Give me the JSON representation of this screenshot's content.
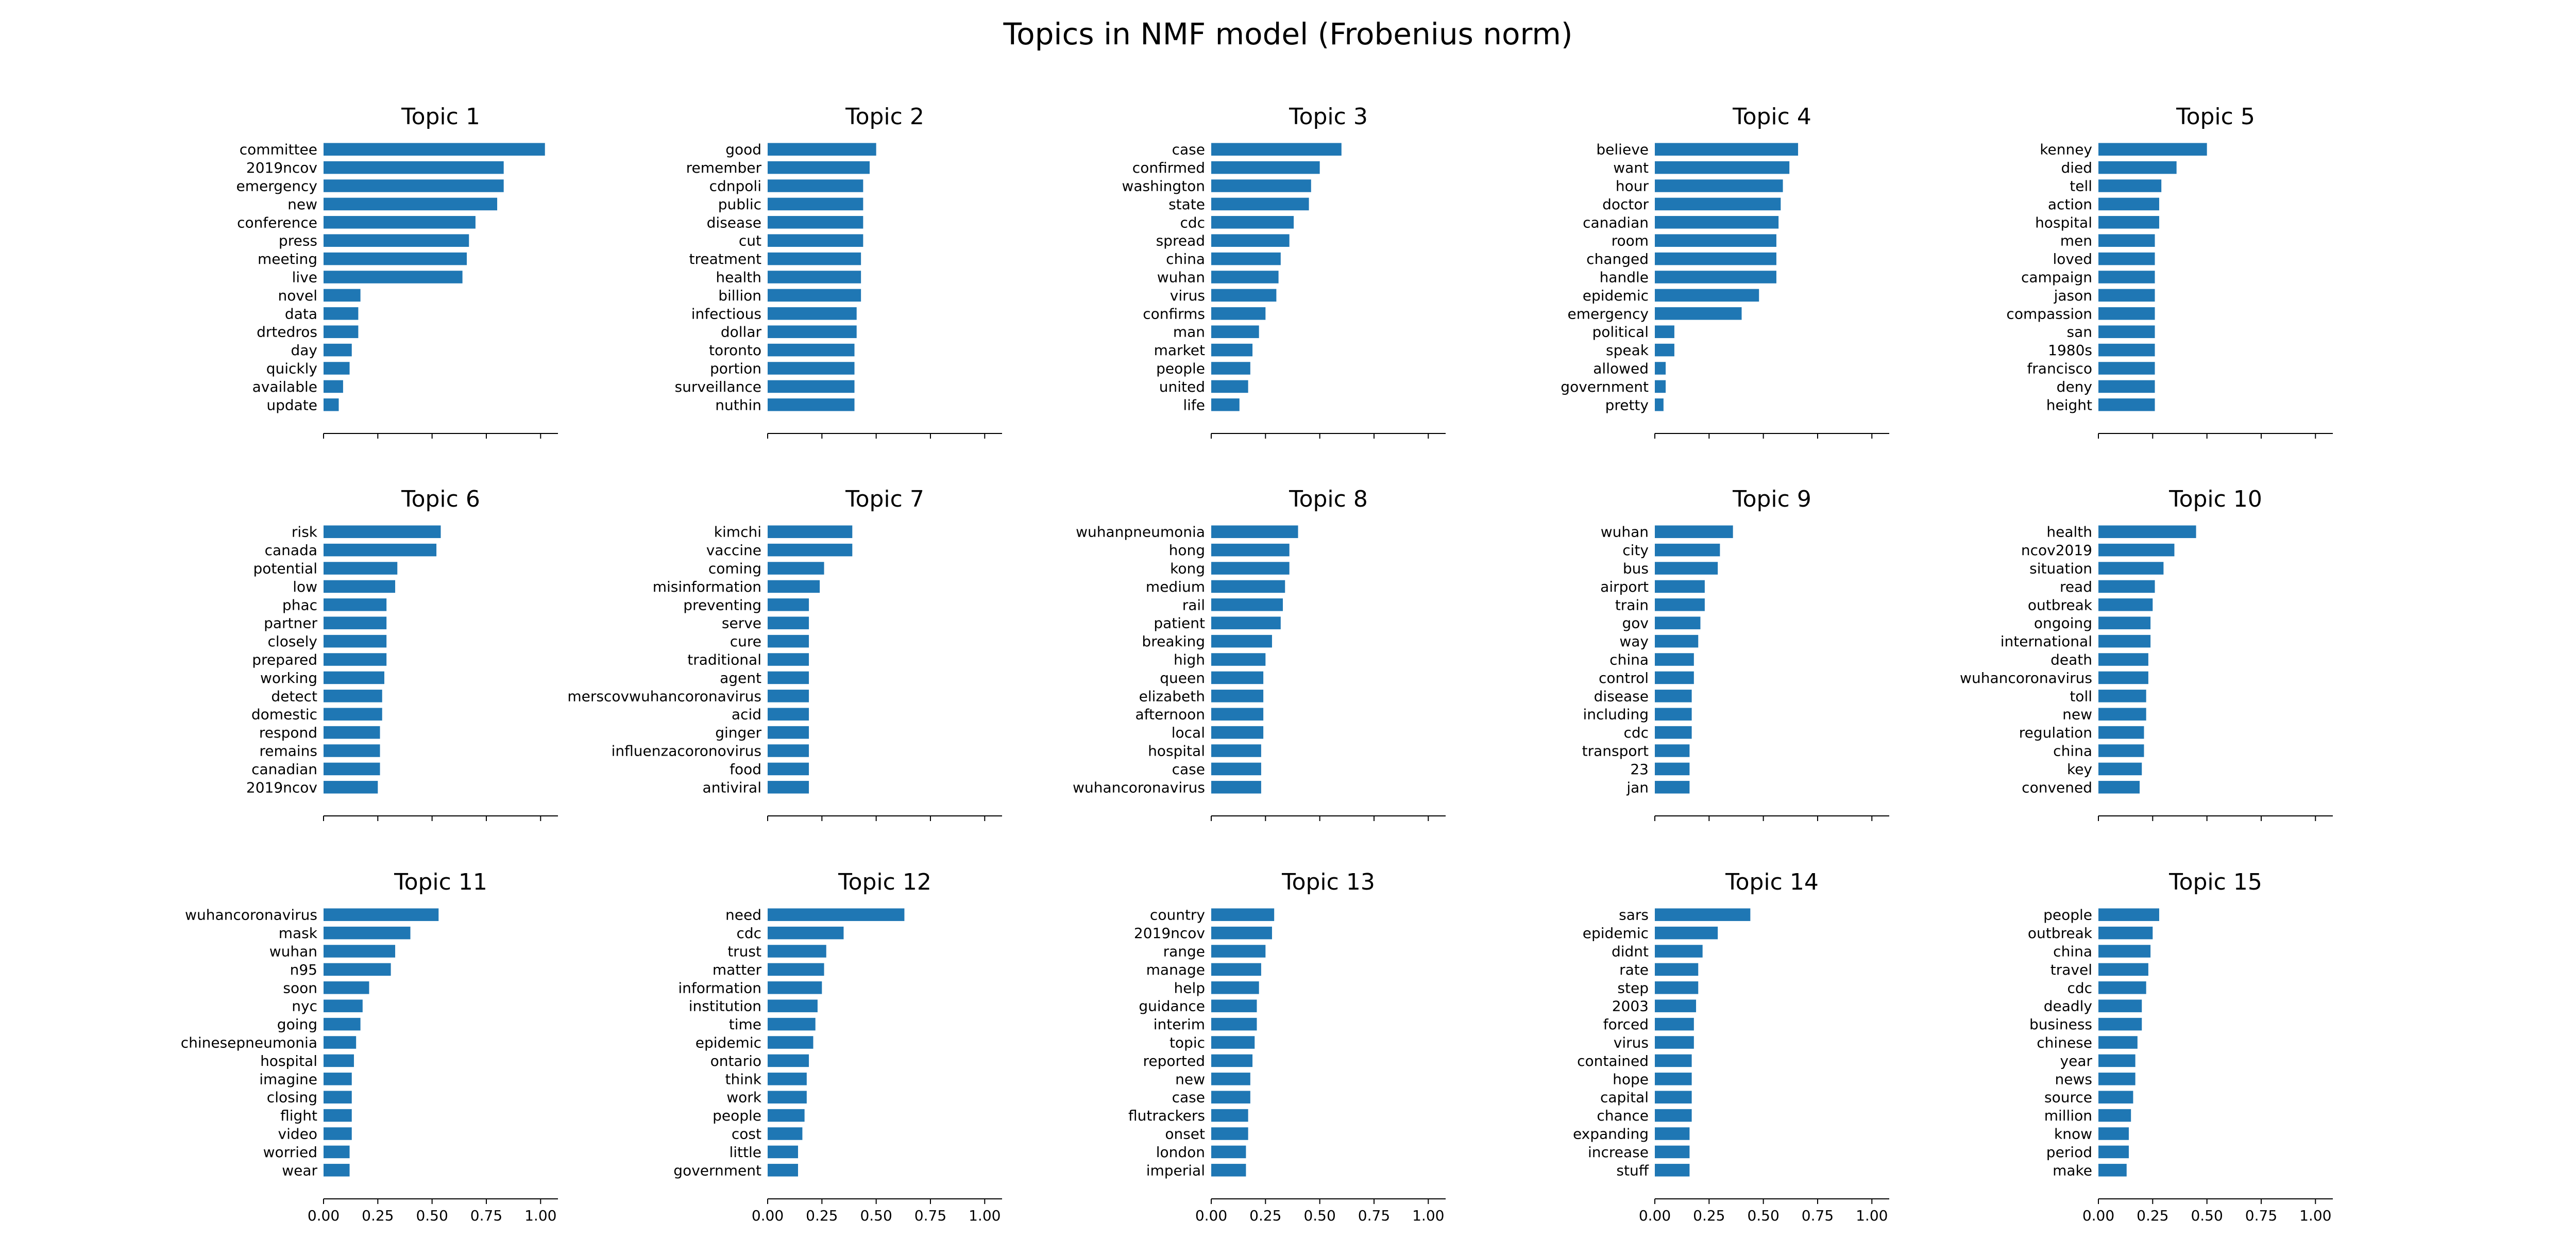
{
  "chart_data": {
    "title": "Topics in NMF model (Frobenius norm)",
    "type": "bar",
    "orientation": "horizontal",
    "bar_color": "#1f77b4",
    "xlim": [
      0,
      1.08
    ],
    "xticks": [
      0.0,
      0.25,
      0.5,
      0.75,
      1.0
    ],
    "xtick_labels": [
      "0.00",
      "0.25",
      "0.50",
      "0.75",
      "1.00"
    ],
    "xtick_labels_shown_on": "bottom row",
    "grid": false,
    "layout": "3 rows x 5 columns",
    "subplots": [
      {
        "title": "Topic 1",
        "categories": [
          "committee",
          "2019ncov",
          "emergency",
          "new",
          "conference",
          "press",
          "meeting",
          "live",
          "novel",
          "data",
          "drtedros",
          "day",
          "quickly",
          "available",
          "update"
        ],
        "values": [
          1.02,
          0.83,
          0.83,
          0.8,
          0.7,
          0.67,
          0.66,
          0.64,
          0.17,
          0.16,
          0.16,
          0.13,
          0.12,
          0.09,
          0.07
        ]
      },
      {
        "title": "Topic 2",
        "categories": [
          "good",
          "remember",
          "cdnpoli",
          "public",
          "disease",
          "cut",
          "treatment",
          "health",
          "billion",
          "infectious",
          "dollar",
          "toronto",
          "portion",
          "surveillance",
          "nuthin"
        ],
        "values": [
          0.5,
          0.47,
          0.44,
          0.44,
          0.44,
          0.44,
          0.43,
          0.43,
          0.43,
          0.41,
          0.41,
          0.4,
          0.4,
          0.4,
          0.4
        ]
      },
      {
        "title": "Topic 3",
        "categories": [
          "case",
          "confirmed",
          "washington",
          "state",
          "cdc",
          "spread",
          "china",
          "wuhan",
          "virus",
          "confirms",
          "man",
          "market",
          "people",
          "united",
          "life"
        ],
        "values": [
          0.6,
          0.5,
          0.46,
          0.45,
          0.38,
          0.36,
          0.32,
          0.31,
          0.3,
          0.25,
          0.22,
          0.19,
          0.18,
          0.17,
          0.13
        ]
      },
      {
        "title": "Topic 4",
        "categories": [
          "believe",
          "want",
          "hour",
          "doctor",
          "canadian",
          "room",
          "changed",
          "handle",
          "epidemic",
          "emergency",
          "political",
          "speak",
          "allowed",
          "government",
          "pretty"
        ],
        "values": [
          0.66,
          0.62,
          0.59,
          0.58,
          0.57,
          0.56,
          0.56,
          0.56,
          0.48,
          0.4,
          0.09,
          0.09,
          0.05,
          0.05,
          0.04
        ]
      },
      {
        "title": "Topic 5",
        "categories": [
          "kenney",
          "died",
          "tell",
          "action",
          "hospital",
          "men",
          "loved",
          "campaign",
          "jason",
          "compassion",
          "san",
          "1980s",
          "francisco",
          "deny",
          "height"
        ],
        "values": [
          0.5,
          0.36,
          0.29,
          0.28,
          0.28,
          0.26,
          0.26,
          0.26,
          0.26,
          0.26,
          0.26,
          0.26,
          0.26,
          0.26,
          0.26
        ]
      },
      {
        "title": "Topic 6",
        "categories": [
          "risk",
          "canada",
          "potential",
          "low",
          "phac",
          "partner",
          "closely",
          "prepared",
          "working",
          "detect",
          "domestic",
          "respond",
          "remains",
          "canadian",
          "2019ncov"
        ],
        "values": [
          0.54,
          0.52,
          0.34,
          0.33,
          0.29,
          0.29,
          0.29,
          0.29,
          0.28,
          0.27,
          0.27,
          0.26,
          0.26,
          0.26,
          0.25
        ]
      },
      {
        "title": "Topic 7",
        "categories": [
          "kimchi",
          "vaccine",
          "coming",
          "misinformation",
          "preventing",
          "serve",
          "cure",
          "traditional",
          "agent",
          "merscovwuhancoronavirus",
          "acid",
          "ginger",
          "influenzacoronovirus",
          "food",
          "antiviral"
        ],
        "values": [
          0.39,
          0.39,
          0.26,
          0.24,
          0.19,
          0.19,
          0.19,
          0.19,
          0.19,
          0.19,
          0.19,
          0.19,
          0.19,
          0.19,
          0.19
        ]
      },
      {
        "title": "Topic 8",
        "categories": [
          "wuhanpneumonia",
          "hong",
          "kong",
          "medium",
          "rail",
          "patient",
          "breaking",
          "high",
          "queen",
          "elizabeth",
          "afternoon",
          "local",
          "hospital",
          "case",
          "wuhancoronavirus"
        ],
        "values": [
          0.4,
          0.36,
          0.36,
          0.34,
          0.33,
          0.32,
          0.28,
          0.25,
          0.24,
          0.24,
          0.24,
          0.24,
          0.23,
          0.23,
          0.23
        ]
      },
      {
        "title": "Topic 9",
        "categories": [
          "wuhan",
          "city",
          "bus",
          "airport",
          "train",
          "gov",
          "way",
          "china",
          "control",
          "disease",
          "including",
          "cdc",
          "transport",
          "23",
          "jan"
        ],
        "values": [
          0.36,
          0.3,
          0.29,
          0.23,
          0.23,
          0.21,
          0.2,
          0.18,
          0.18,
          0.17,
          0.17,
          0.17,
          0.16,
          0.16,
          0.16
        ]
      },
      {
        "title": "Topic 10",
        "categories": [
          "health",
          "ncov2019",
          "situation",
          "read",
          "outbreak",
          "ongoing",
          "international",
          "death",
          "wuhancoronavirus",
          "toll",
          "new",
          "regulation",
          "china",
          "key",
          "convened"
        ],
        "values": [
          0.45,
          0.35,
          0.3,
          0.26,
          0.25,
          0.24,
          0.24,
          0.23,
          0.23,
          0.22,
          0.22,
          0.21,
          0.21,
          0.2,
          0.19
        ]
      },
      {
        "title": "Topic 11",
        "categories": [
          "wuhancoronavirus",
          "mask",
          "wuhan",
          "n95",
          "soon",
          "nyc",
          "going",
          "chinesepneumonia",
          "hospital",
          "imagine",
          "closing",
          "flight",
          "video",
          "worried",
          "wear"
        ],
        "values": [
          0.53,
          0.4,
          0.33,
          0.31,
          0.21,
          0.18,
          0.17,
          0.15,
          0.14,
          0.13,
          0.13,
          0.13,
          0.13,
          0.12,
          0.12
        ]
      },
      {
        "title": "Topic 12",
        "categories": [
          "need",
          "cdc",
          "trust",
          "matter",
          "information",
          "institution",
          "time",
          "epidemic",
          "ontario",
          "think",
          "work",
          "people",
          "cost",
          "little",
          "government"
        ],
        "values": [
          0.63,
          0.35,
          0.27,
          0.26,
          0.25,
          0.23,
          0.22,
          0.21,
          0.19,
          0.18,
          0.18,
          0.17,
          0.16,
          0.14,
          0.14
        ]
      },
      {
        "title": "Topic 13",
        "categories": [
          "country",
          "2019ncov",
          "range",
          "manage",
          "help",
          "guidance",
          "interim",
          "topic",
          "reported",
          "new",
          "case",
          "flutrackers",
          "onset",
          "london",
          "imperial"
        ],
        "values": [
          0.29,
          0.28,
          0.25,
          0.23,
          0.22,
          0.21,
          0.21,
          0.2,
          0.19,
          0.18,
          0.18,
          0.17,
          0.17,
          0.16,
          0.16
        ]
      },
      {
        "title": "Topic 14",
        "categories": [
          "sars",
          "epidemic",
          "didnt",
          "rate",
          "step",
          "2003",
          "forced",
          "virus",
          "contained",
          "hope",
          "capital",
          "chance",
          "expanding",
          "increase",
          "stuff"
        ],
        "values": [
          0.44,
          0.29,
          0.22,
          0.2,
          0.2,
          0.19,
          0.18,
          0.18,
          0.17,
          0.17,
          0.17,
          0.17,
          0.16,
          0.16,
          0.16
        ]
      },
      {
        "title": "Topic 15",
        "categories": [
          "people",
          "outbreak",
          "china",
          "travel",
          "cdc",
          "deadly",
          "business",
          "chinese",
          "year",
          "news",
          "source",
          "million",
          "know",
          "period",
          "make"
        ],
        "values": [
          0.28,
          0.25,
          0.24,
          0.23,
          0.22,
          0.2,
          0.2,
          0.18,
          0.17,
          0.17,
          0.16,
          0.15,
          0.14,
          0.14,
          0.13
        ]
      }
    ]
  }
}
